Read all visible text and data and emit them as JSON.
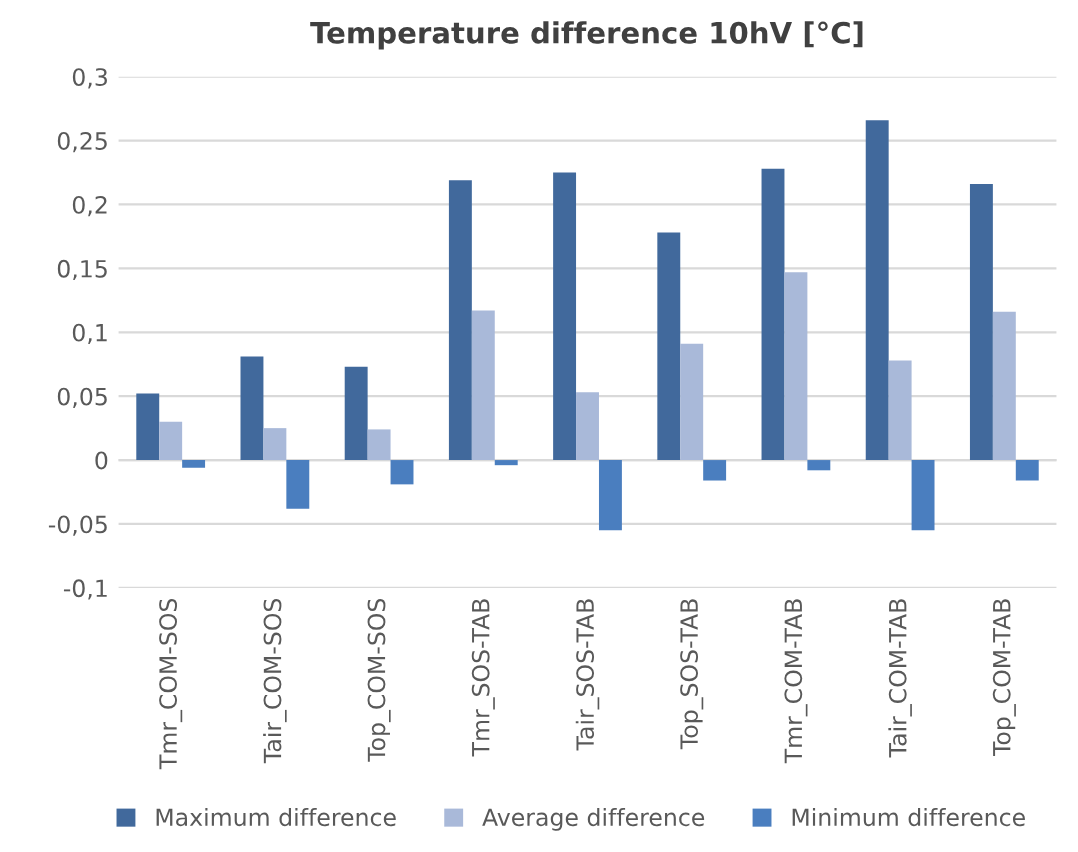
{
  "chart_data": {
    "type": "bar",
    "title": "Temperature difference 10hV [°C]",
    "categories": [
      "Tmr_COM-SOS",
      "Tair_COM-SOS",
      "Top_COM-SOS",
      "Tmr_SOS-TAB",
      "Tair_SOS-TAB",
      "Top_SOS-TAB",
      "Tmr_COM-TAB",
      "Tair_COM-TAB",
      "Top_COM-TAB"
    ],
    "series": [
      {
        "name": "Maximum difference",
        "color": "#41699c",
        "values": [
          0.052,
          0.081,
          0.073,
          0.219,
          0.225,
          0.178,
          0.228,
          0.266,
          0.216
        ]
      },
      {
        "name": "Average difference",
        "color": "#a9b9d9",
        "values": [
          0.03,
          0.025,
          0.024,
          0.117,
          0.053,
          0.091,
          0.147,
          0.078,
          0.116
        ]
      },
      {
        "name": "Minimum difference",
        "color": "#4a7ebf",
        "values": [
          -0.006,
          -0.038,
          -0.019,
          -0.004,
          -0.055,
          -0.016,
          -0.008,
          -0.055,
          -0.016
        ]
      }
    ],
    "ylim": [
      -0.1,
      0.3
    ],
    "yticks": [
      {
        "value": -0.1,
        "label": "-0,1"
      },
      {
        "value": -0.05,
        "label": "-0,05"
      },
      0,
      {
        "value": 0.05,
        "label": "0,05"
      },
      {
        "value": 0.1,
        "label": "0,1"
      },
      {
        "value": 0.15,
        "label": "0,15"
      },
      {
        "value": 0.2,
        "label": "0,2"
      },
      {
        "value": 0.25,
        "label": "0,25"
      },
      {
        "value": 0.3,
        "label": "0,3"
      }
    ],
    "grid": "y",
    "legend": "bottom"
  }
}
